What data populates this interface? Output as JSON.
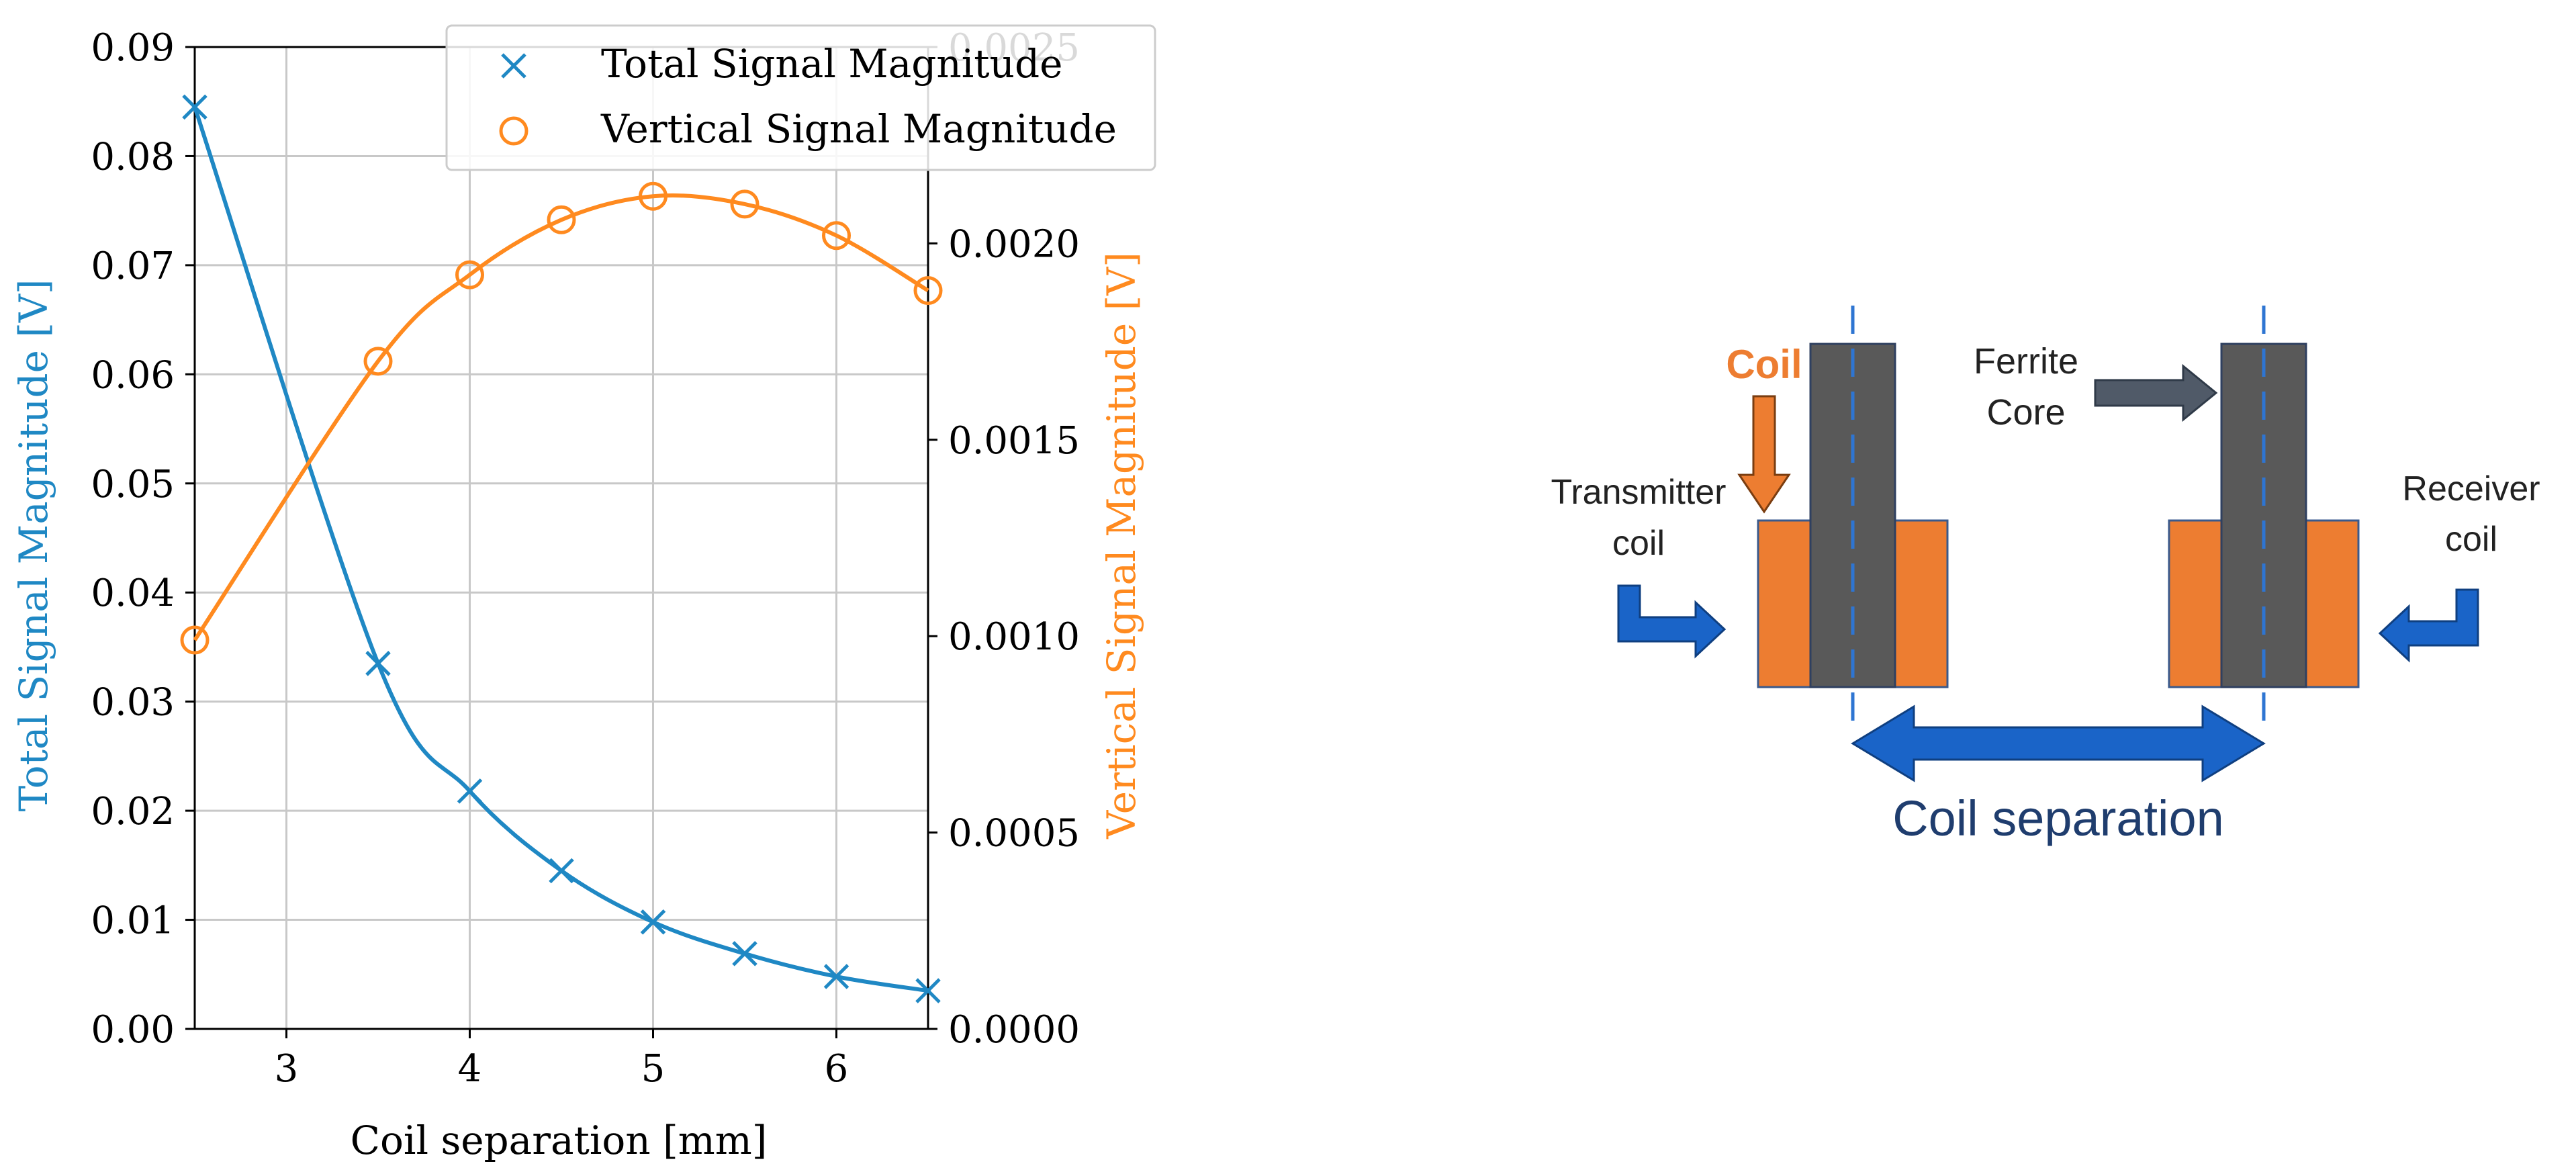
{
  "colors": {
    "total_series": "#1f88c4",
    "vertical_series": "#ff8a1f",
    "grid": "#c8c8c8",
    "axis": "#000000",
    "coil_orange": "#ed7d31",
    "ferrite_gray": "#595959",
    "arrow_blue": "#1a64c8",
    "dashed_blue": "#2e75d2",
    "separation_text": "#1f3d6e"
  },
  "chart_data": {
    "type": "line",
    "xlabel": "Coil separation [mm]",
    "ylabel_left": "Total Signal Magnitude [V]",
    "ylabel_right": "Vertical Signal Magnitude [V]",
    "xlim": [
      2.5,
      6.5
    ],
    "ylim_left": [
      0.0,
      0.09
    ],
    "ylim_right": [
      0.0,
      0.0025
    ],
    "x_ticks": [
      "3",
      "4",
      "5",
      "6"
    ],
    "y_left_ticks": [
      "0.00",
      "0.01",
      "0.02",
      "0.03",
      "0.04",
      "0.05",
      "0.06",
      "0.07",
      "0.08",
      "0.09"
    ],
    "y_right_ticks": [
      "0.0000",
      "0.0005",
      "0.0010",
      "0.0015",
      "0.0020",
      "0.0025"
    ],
    "grid": true,
    "legend_position": "top-right",
    "series": [
      {
        "name": "Total Signal Magnitude",
        "axis": "left",
        "marker": "x",
        "x": [
          2.5,
          3.5,
          4.0,
          4.5,
          5.0,
          5.5,
          6.0,
          6.5
        ],
        "values": [
          0.0845,
          0.0335,
          0.0218,
          0.0145,
          0.0098,
          0.0069,
          0.0048,
          0.0035
        ]
      },
      {
        "name": "Vertical Signal Magnitude",
        "axis": "right",
        "marker": "o",
        "x": [
          2.5,
          3.5,
          4.0,
          4.5,
          5.0,
          5.5,
          6.0,
          6.5
        ],
        "values": [
          0.00099,
          0.0017,
          0.00192,
          0.00206,
          0.00212,
          0.0021,
          0.00202,
          0.00188
        ]
      }
    ]
  },
  "diagram": {
    "coil_label": "Coil",
    "ferrite_label_line1": "Ferrite",
    "ferrite_label_line2": "Core",
    "transmitter_label_line1": "Transmitter",
    "transmitter_label_line2": "coil",
    "receiver_label_line1": "Receiver",
    "receiver_label_line2": "coil",
    "separation_label": "Coil separation"
  }
}
